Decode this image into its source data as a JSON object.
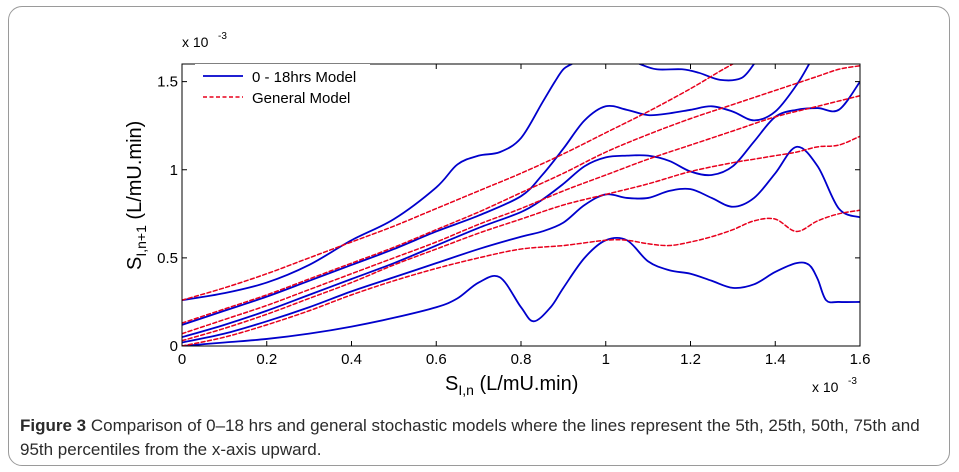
{
  "caption": {
    "label": "Figure 3",
    "text": "Comparison of 0–18 hrs and general stochastic models where the lines represent the 5th, 25th, 50th, 75th and 95th percentiles from the x-axis upward."
  },
  "chart_data": {
    "type": "line",
    "xlabel_main": "S",
    "xlabel_sub": "I,n",
    "xlabel_rest": " (L/mU.min)",
    "ylabel_main": "S",
    "ylabel_sub": "I,n+1",
    "ylabel_rest": " (L/mU.min)",
    "x_exponent": "x 10",
    "x_exponent_power": "-3",
    "y_exponent": "x 10",
    "y_exponent_power": "-3",
    "xlim": [
      0,
      1.6
    ],
    "ylim": [
      0,
      1.6
    ],
    "x_ticks": [
      0,
      0.2,
      0.4,
      0.6,
      0.8,
      1,
      1.2,
      1.4,
      1.6
    ],
    "x_tick_labels": [
      "0",
      "0.2",
      "0.4",
      "0.6",
      "0.8",
      "1",
      "1.2",
      "1.4",
      "1.6"
    ],
    "y_ticks": [
      0,
      0.5,
      1,
      1.5
    ],
    "y_tick_labels": [
      "0",
      "0.5",
      "1",
      "1.5"
    ],
    "legend_position": "top-left",
    "colors": {
      "model_018": "#0000cc",
      "general": "#e8001c"
    },
    "series": [
      {
        "name": "0 - 18hrs Model",
        "style": "solid",
        "color": "#0000cc",
        "percentile": "5th",
        "x": [
          0,
          0.1,
          0.2,
          0.3,
          0.4,
          0.5,
          0.6,
          0.65,
          0.7,
          0.75,
          0.8,
          0.83,
          0.87,
          0.9,
          0.95,
          1.0,
          1.05,
          1.1,
          1.15,
          1.2,
          1.25,
          1.3,
          1.35,
          1.4,
          1.45,
          1.48,
          1.5,
          1.52,
          1.55,
          1.6
        ],
        "y": [
          0,
          0.02,
          0.04,
          0.07,
          0.11,
          0.16,
          0.22,
          0.27,
          0.36,
          0.39,
          0.22,
          0.14,
          0.22,
          0.33,
          0.5,
          0.6,
          0.6,
          0.48,
          0.43,
          0.41,
          0.37,
          0.33,
          0.35,
          0.42,
          0.47,
          0.46,
          0.38,
          0.26,
          0.25,
          0.25
        ]
      },
      {
        "name": "0 - 18hrs Model",
        "style": "solid",
        "color": "#0000cc",
        "percentile": "25th",
        "x": [
          0,
          0.1,
          0.2,
          0.3,
          0.4,
          0.5,
          0.6,
          0.7,
          0.8,
          0.85,
          0.9,
          0.95,
          1.0,
          1.05,
          1.1,
          1.15,
          1.2,
          1.25,
          1.3,
          1.35,
          1.4,
          1.45,
          1.5,
          1.55,
          1.6
        ],
        "y": [
          0.02,
          0.07,
          0.14,
          0.22,
          0.31,
          0.39,
          0.47,
          0.55,
          0.62,
          0.65,
          0.7,
          0.8,
          0.86,
          0.84,
          0.84,
          0.88,
          0.89,
          0.84,
          0.79,
          0.84,
          0.98,
          1.13,
          1.02,
          0.78,
          0.73
        ]
      },
      {
        "name": "0 - 18hrs Model",
        "style": "solid",
        "color": "#0000cc",
        "percentile": "50th",
        "x": [
          0,
          0.1,
          0.2,
          0.3,
          0.4,
          0.5,
          0.6,
          0.7,
          0.8,
          0.85,
          0.9,
          0.95,
          1.0,
          1.05,
          1.1,
          1.15,
          1.2,
          1.25,
          1.3,
          1.35,
          1.4,
          1.45,
          1.5,
          1.55,
          1.6
        ],
        "y": [
          0.05,
          0.12,
          0.2,
          0.29,
          0.38,
          0.47,
          0.57,
          0.67,
          0.76,
          0.83,
          0.92,
          1.02,
          1.07,
          1.08,
          1.08,
          1.05,
          0.99,
          0.97,
          1.02,
          1.16,
          1.3,
          1.34,
          1.35,
          1.34,
          1.5
        ]
      },
      {
        "name": "0 - 18hrs Model",
        "style": "solid",
        "color": "#0000cc",
        "percentile": "75th",
        "x": [
          0,
          0.1,
          0.2,
          0.3,
          0.4,
          0.5,
          0.6,
          0.7,
          0.8,
          0.85,
          0.9,
          0.95,
          1.0,
          1.05,
          1.1,
          1.15,
          1.2,
          1.25,
          1.3,
          1.35,
          1.4,
          1.45,
          1.48
        ],
        "y": [
          0.12,
          0.2,
          0.28,
          0.37,
          0.46,
          0.55,
          0.65,
          0.74,
          0.85,
          0.97,
          1.12,
          1.28,
          1.36,
          1.34,
          1.31,
          1.32,
          1.34,
          1.36,
          1.33,
          1.28,
          1.33,
          1.48,
          1.6
        ]
      },
      {
        "name": "0 - 18hrs Model",
        "style": "solid",
        "color": "#0000cc",
        "percentile": "95th",
        "x": [
          0,
          0.1,
          0.2,
          0.3,
          0.4,
          0.5,
          0.6,
          0.65,
          0.7,
          0.75,
          0.8,
          0.85,
          0.88,
          0.9,
          0.92
        ],
        "y": [
          0.26,
          0.3,
          0.36,
          0.46,
          0.6,
          0.72,
          0.9,
          1.03,
          1.08,
          1.1,
          1.18,
          1.38,
          1.5,
          1.57,
          1.6
        ]
      },
      {
        "name": "0 - 18hrs Model",
        "style": "solid",
        "color": "#0000cc",
        "percentile": "95th-upper",
        "x": [
          1.08,
          1.12,
          1.18,
          1.22,
          1.27,
          1.32,
          1.35
        ],
        "y": [
          1.6,
          1.57,
          1.57,
          1.55,
          1.51,
          1.52,
          1.6
        ]
      },
      {
        "name": "General Model",
        "style": "dashed",
        "color": "#e8001c",
        "percentile": "5th",
        "x": [
          0,
          0.1,
          0.2,
          0.3,
          0.4,
          0.5,
          0.6,
          0.7,
          0.8,
          0.9,
          1.0,
          1.05,
          1.1,
          1.15,
          1.2,
          1.25,
          1.3,
          1.35,
          1.4,
          1.45,
          1.5,
          1.55,
          1.6
        ],
        "y": [
          0,
          0.05,
          0.12,
          0.2,
          0.29,
          0.37,
          0.44,
          0.5,
          0.55,
          0.57,
          0.6,
          0.6,
          0.58,
          0.57,
          0.59,
          0.62,
          0.66,
          0.71,
          0.72,
          0.65,
          0.71,
          0.75,
          0.77
        ]
      },
      {
        "name": "General Model",
        "style": "dashed",
        "color": "#e8001c",
        "percentile": "25th",
        "x": [
          0,
          0.1,
          0.2,
          0.3,
          0.4,
          0.5,
          0.6,
          0.7,
          0.8,
          0.9,
          1.0,
          1.1,
          1.2,
          1.3,
          1.35,
          1.4,
          1.45,
          1.5,
          1.55,
          1.6
        ],
        "y": [
          0.03,
          0.1,
          0.18,
          0.27,
          0.36,
          0.46,
          0.55,
          0.64,
          0.72,
          0.8,
          0.86,
          0.92,
          0.99,
          1.04,
          1.06,
          1.08,
          1.1,
          1.13,
          1.14,
          1.19
        ]
      },
      {
        "name": "General Model",
        "style": "dashed",
        "color": "#e8001c",
        "percentile": "50th",
        "x": [
          0,
          0.1,
          0.2,
          0.3,
          0.4,
          0.5,
          0.6,
          0.7,
          0.8,
          0.9,
          1.0,
          1.1,
          1.2,
          1.3,
          1.4,
          1.5,
          1.6
        ],
        "y": [
          0.07,
          0.15,
          0.23,
          0.32,
          0.41,
          0.5,
          0.59,
          0.69,
          0.78,
          0.88,
          0.97,
          1.06,
          1.14,
          1.22,
          1.3,
          1.36,
          1.42
        ]
      },
      {
        "name": "General Model",
        "style": "dashed",
        "color": "#e8001c",
        "percentile": "75th",
        "x": [
          0,
          0.1,
          0.2,
          0.3,
          0.4,
          0.5,
          0.6,
          0.7,
          0.8,
          0.9,
          1.0,
          1.1,
          1.2,
          1.3,
          1.4,
          1.5,
          1.55,
          1.6
        ],
        "y": [
          0.13,
          0.21,
          0.29,
          0.38,
          0.47,
          0.56,
          0.66,
          0.76,
          0.87,
          0.98,
          1.1,
          1.2,
          1.29,
          1.37,
          1.45,
          1.53,
          1.57,
          1.59
        ]
      },
      {
        "name": "General Model",
        "style": "dashed",
        "color": "#e8001c",
        "percentile": "95th",
        "x": [
          0,
          0.1,
          0.2,
          0.3,
          0.4,
          0.5,
          0.6,
          0.7,
          0.8,
          0.9,
          1.0,
          1.1,
          1.2,
          1.27,
          1.3
        ],
        "y": [
          0.26,
          0.33,
          0.41,
          0.5,
          0.59,
          0.68,
          0.78,
          0.88,
          0.98,
          1.09,
          1.21,
          1.33,
          1.46,
          1.56,
          1.6
        ]
      }
    ]
  }
}
